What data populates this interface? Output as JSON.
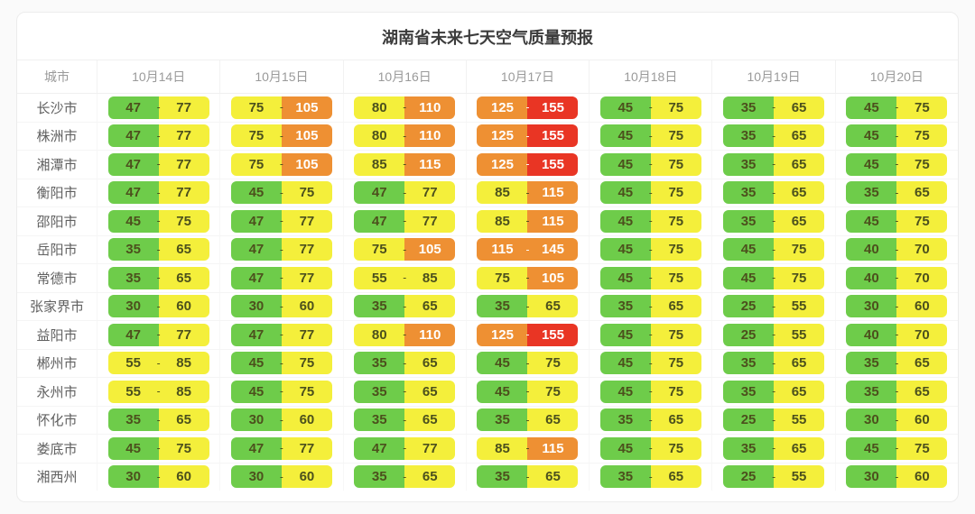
{
  "chart_data": {
    "type": "table",
    "title": "湖南省未来七天空气质量预报",
    "city_column_header": "城市",
    "date_columns": [
      "10月14日",
      "10月15日",
      "10月16日",
      "10月17日",
      "10月18日",
      "10月19日",
      "10月20日"
    ],
    "range_separator": "-",
    "rows": [
      {
        "city": "长沙市",
        "cells": [
          [
            47,
            77,
            "green",
            "yellow"
          ],
          [
            75,
            105,
            "yellow",
            "orange"
          ],
          [
            80,
            110,
            "yellow",
            "orange"
          ],
          [
            125,
            155,
            "orange",
            "red"
          ],
          [
            45,
            75,
            "green",
            "yellow"
          ],
          [
            35,
            65,
            "green",
            "yellow"
          ],
          [
            45,
            75,
            "green",
            "yellow"
          ]
        ]
      },
      {
        "city": "株洲市",
        "cells": [
          [
            47,
            77,
            "green",
            "yellow"
          ],
          [
            75,
            105,
            "yellow",
            "orange"
          ],
          [
            80,
            110,
            "yellow",
            "orange"
          ],
          [
            125,
            155,
            "orange",
            "red"
          ],
          [
            45,
            75,
            "green",
            "yellow"
          ],
          [
            35,
            65,
            "green",
            "yellow"
          ],
          [
            45,
            75,
            "green",
            "yellow"
          ]
        ]
      },
      {
        "city": "湘潭市",
        "cells": [
          [
            47,
            77,
            "green",
            "yellow"
          ],
          [
            75,
            105,
            "yellow",
            "orange"
          ],
          [
            85,
            115,
            "yellow",
            "orange"
          ],
          [
            125,
            155,
            "orange",
            "red"
          ],
          [
            45,
            75,
            "green",
            "yellow"
          ],
          [
            35,
            65,
            "green",
            "yellow"
          ],
          [
            45,
            75,
            "green",
            "yellow"
          ]
        ]
      },
      {
        "city": "衡阳市",
        "cells": [
          [
            47,
            77,
            "green",
            "yellow"
          ],
          [
            45,
            75,
            "green",
            "yellow"
          ],
          [
            47,
            77,
            "green",
            "yellow"
          ],
          [
            85,
            115,
            "yellow",
            "orange"
          ],
          [
            45,
            75,
            "green",
            "yellow"
          ],
          [
            35,
            65,
            "green",
            "yellow"
          ],
          [
            35,
            65,
            "green",
            "yellow"
          ]
        ]
      },
      {
        "city": "邵阳市",
        "cells": [
          [
            45,
            75,
            "green",
            "yellow"
          ],
          [
            47,
            77,
            "green",
            "yellow"
          ],
          [
            47,
            77,
            "green",
            "yellow"
          ],
          [
            85,
            115,
            "yellow",
            "orange"
          ],
          [
            45,
            75,
            "green",
            "yellow"
          ],
          [
            35,
            65,
            "green",
            "yellow"
          ],
          [
            45,
            75,
            "green",
            "yellow"
          ]
        ]
      },
      {
        "city": "岳阳市",
        "cells": [
          [
            35,
            65,
            "green",
            "yellow"
          ],
          [
            47,
            77,
            "green",
            "yellow"
          ],
          [
            75,
            105,
            "yellow",
            "orange"
          ],
          [
            115,
            145,
            "orange",
            "orange"
          ],
          [
            45,
            75,
            "green",
            "yellow"
          ],
          [
            45,
            75,
            "green",
            "yellow"
          ],
          [
            40,
            70,
            "green",
            "yellow"
          ]
        ]
      },
      {
        "city": "常德市",
        "cells": [
          [
            35,
            65,
            "green",
            "yellow"
          ],
          [
            47,
            77,
            "green",
            "yellow"
          ],
          [
            55,
            85,
            "yellow",
            "yellow"
          ],
          [
            75,
            105,
            "yellow",
            "orange"
          ],
          [
            45,
            75,
            "green",
            "yellow"
          ],
          [
            45,
            75,
            "green",
            "yellow"
          ],
          [
            40,
            70,
            "green",
            "yellow"
          ]
        ]
      },
      {
        "city": "张家界市",
        "cells": [
          [
            30,
            60,
            "green",
            "yellow"
          ],
          [
            30,
            60,
            "green",
            "yellow"
          ],
          [
            35,
            65,
            "green",
            "yellow"
          ],
          [
            35,
            65,
            "green",
            "yellow"
          ],
          [
            35,
            65,
            "green",
            "yellow"
          ],
          [
            25,
            55,
            "green",
            "yellow"
          ],
          [
            30,
            60,
            "green",
            "yellow"
          ]
        ]
      },
      {
        "city": "益阳市",
        "cells": [
          [
            47,
            77,
            "green",
            "yellow"
          ],
          [
            47,
            77,
            "green",
            "yellow"
          ],
          [
            80,
            110,
            "yellow",
            "orange"
          ],
          [
            125,
            155,
            "orange",
            "red"
          ],
          [
            45,
            75,
            "green",
            "yellow"
          ],
          [
            25,
            55,
            "green",
            "yellow"
          ],
          [
            40,
            70,
            "green",
            "yellow"
          ]
        ]
      },
      {
        "city": "郴州市",
        "cells": [
          [
            55,
            85,
            "yellow",
            "yellow"
          ],
          [
            45,
            75,
            "green",
            "yellow"
          ],
          [
            35,
            65,
            "green",
            "yellow"
          ],
          [
            45,
            75,
            "green",
            "yellow"
          ],
          [
            45,
            75,
            "green",
            "yellow"
          ],
          [
            35,
            65,
            "green",
            "yellow"
          ],
          [
            35,
            65,
            "green",
            "yellow"
          ]
        ]
      },
      {
        "city": "永州市",
        "cells": [
          [
            55,
            85,
            "yellow",
            "yellow"
          ],
          [
            45,
            75,
            "green",
            "yellow"
          ],
          [
            35,
            65,
            "green",
            "yellow"
          ],
          [
            45,
            75,
            "green",
            "yellow"
          ],
          [
            45,
            75,
            "green",
            "yellow"
          ],
          [
            35,
            65,
            "green",
            "yellow"
          ],
          [
            35,
            65,
            "green",
            "yellow"
          ]
        ]
      },
      {
        "city": "怀化市",
        "cells": [
          [
            35,
            65,
            "green",
            "yellow"
          ],
          [
            30,
            60,
            "green",
            "yellow"
          ],
          [
            35,
            65,
            "green",
            "yellow"
          ],
          [
            35,
            65,
            "green",
            "yellow"
          ],
          [
            35,
            65,
            "green",
            "yellow"
          ],
          [
            25,
            55,
            "green",
            "yellow"
          ],
          [
            30,
            60,
            "green",
            "yellow"
          ]
        ]
      },
      {
        "city": "娄底市",
        "cells": [
          [
            45,
            75,
            "green",
            "yellow"
          ],
          [
            47,
            77,
            "green",
            "yellow"
          ],
          [
            47,
            77,
            "green",
            "yellow"
          ],
          [
            85,
            115,
            "yellow",
            "orange"
          ],
          [
            45,
            75,
            "green",
            "yellow"
          ],
          [
            35,
            65,
            "green",
            "yellow"
          ],
          [
            45,
            75,
            "green",
            "yellow"
          ]
        ]
      },
      {
        "city": "湘西州",
        "cells": [
          [
            30,
            60,
            "green",
            "yellow"
          ],
          [
            30,
            60,
            "green",
            "yellow"
          ],
          [
            35,
            65,
            "green",
            "yellow"
          ],
          [
            35,
            65,
            "green",
            "yellow"
          ],
          [
            35,
            65,
            "green",
            "yellow"
          ],
          [
            25,
            55,
            "green",
            "yellow"
          ],
          [
            30,
            60,
            "green",
            "yellow"
          ]
        ]
      }
    ]
  },
  "colors": {
    "green": "#6ecc4a",
    "yellow": "#f4ef3b",
    "orange": "#ee9033",
    "red": "#e93524",
    "pill_text_dark": "#4c501d",
    "pill_text_light": "#ffffff"
  }
}
